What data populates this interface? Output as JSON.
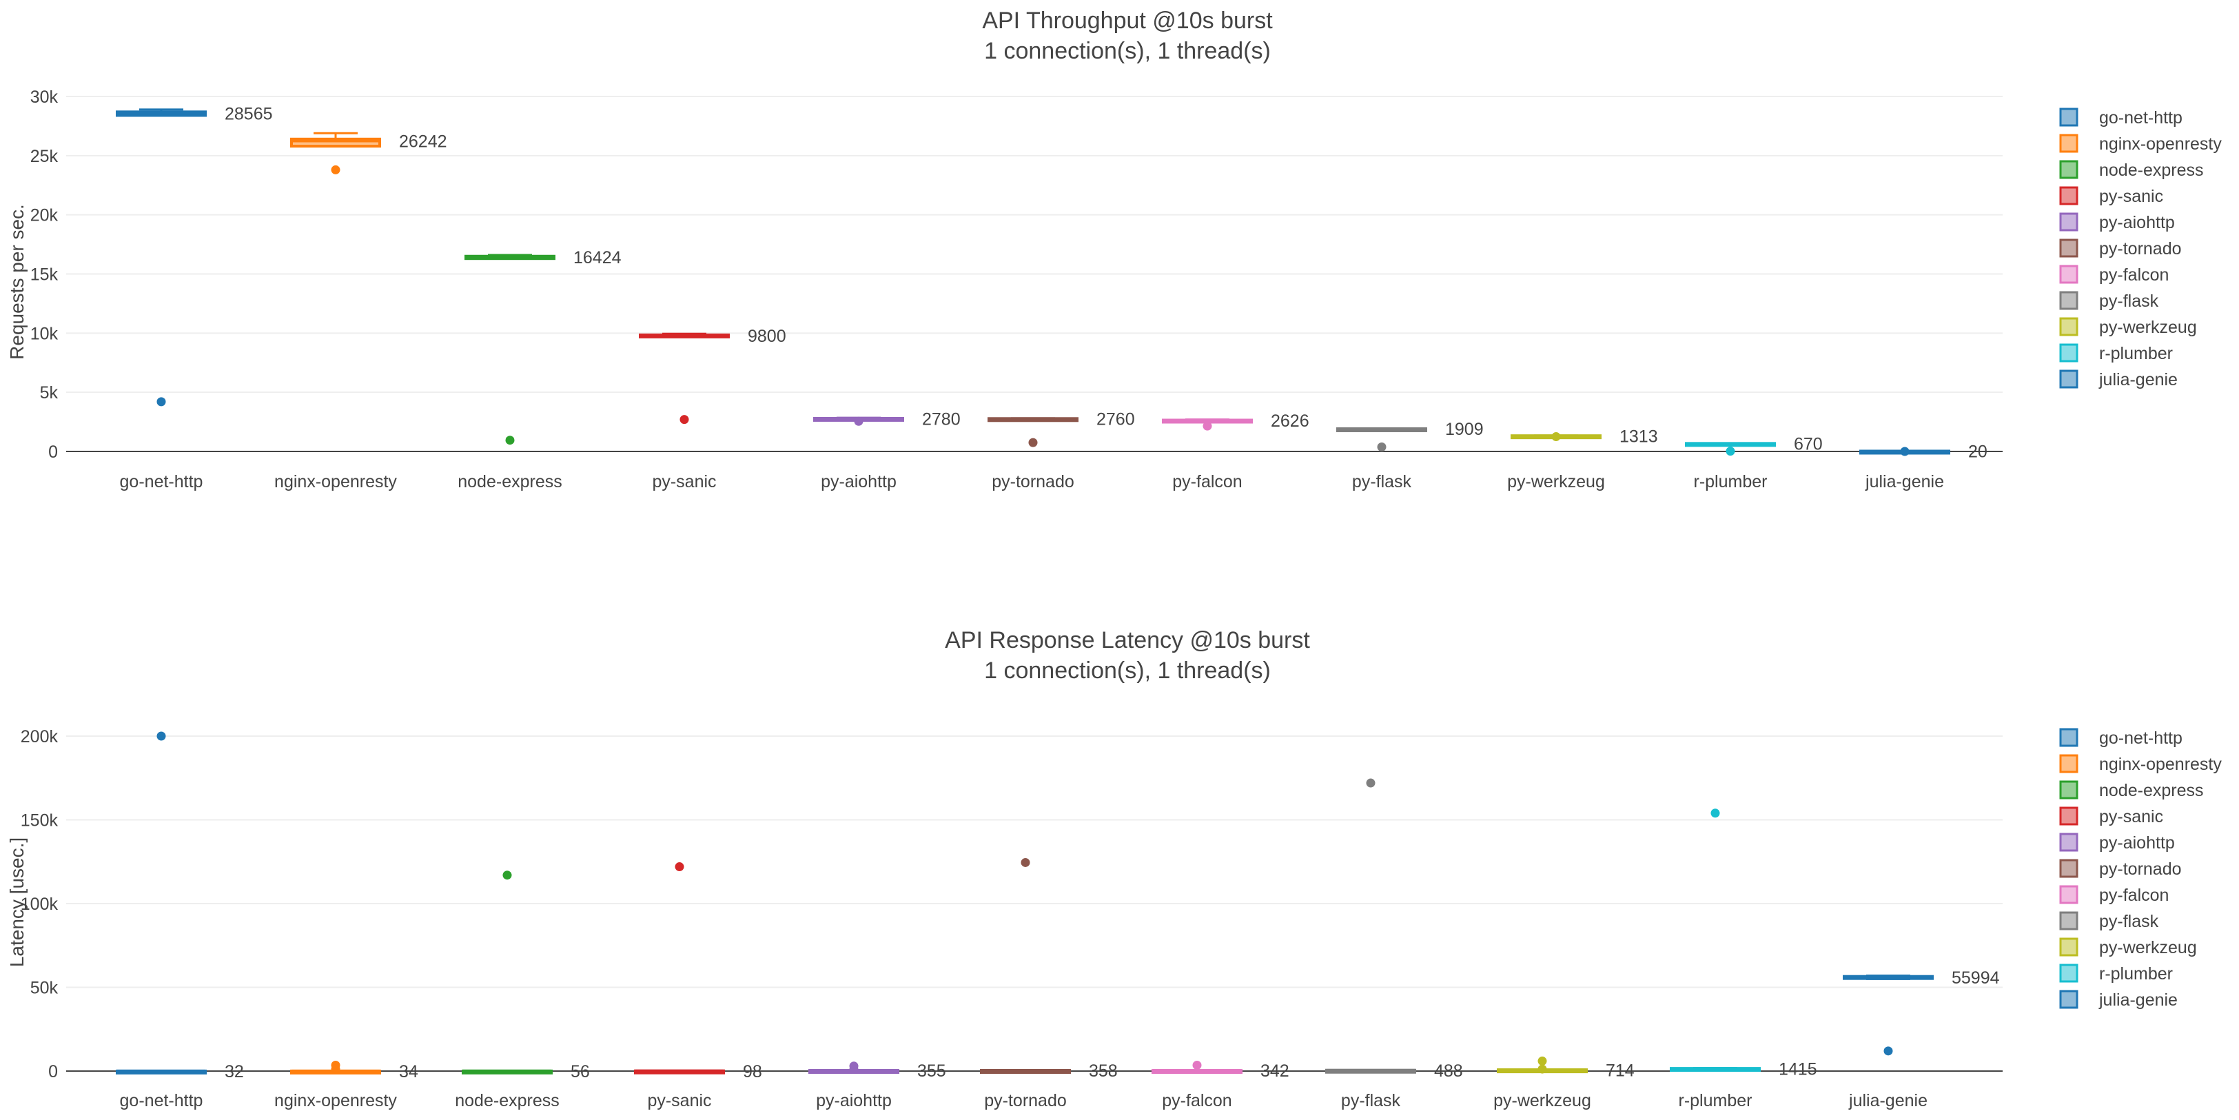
{
  "colors": {
    "go-net-http": "#1f77b4",
    "nginx-openresty": "#ff7f0e",
    "node-express": "#2ca02c",
    "py-sanic": "#d62728",
    "py-aiohttp": "#9467bd",
    "py-tornado": "#8c564b",
    "py-falcon": "#e377c2",
    "py-flask": "#7f7f7f",
    "py-werkzeug": "#bcbd22",
    "r-plumber": "#17becf",
    "julia-genie": "#1f77b4"
  },
  "chart_data": [
    {
      "type": "box",
      "title": "API Throughput @10s burst",
      "subtitle": "1 connection(s), 1 thread(s)",
      "xlabel": "",
      "ylabel": "Requests per sec.",
      "ylim": [
        0,
        30000
      ],
      "yticks": [
        0,
        5000,
        10000,
        15000,
        20000,
        25000,
        30000
      ],
      "ytick_labels": [
        "0",
        "5k",
        "10k",
        "15k",
        "20k",
        "25k",
        "30k"
      ],
      "grid": true,
      "legend": "right",
      "categories": [
        "go-net-http",
        "nginx-openresty",
        "node-express",
        "py-sanic",
        "py-aiohttp",
        "py-tornado",
        "py-falcon",
        "py-flask",
        "py-werkzeug",
        "r-plumber",
        "julia-genie"
      ],
      "series": [
        {
          "name": "go-net-http",
          "q1": 28400,
          "median": 28565,
          "q3": 28700,
          "whisker_low": 28400,
          "whisker_high": 28900,
          "outliers": [
            4200
          ],
          "label": "28565"
        },
        {
          "name": "nginx-openresty",
          "q1": 25800,
          "median": 26242,
          "q3": 26400,
          "whisker_low": 25800,
          "whisker_high": 26900,
          "outliers": [
            23800
          ],
          "label": "26242"
        },
        {
          "name": "node-express",
          "q1": 16300,
          "median": 16424,
          "q3": 16500,
          "whisker_low": 16300,
          "whisker_high": 16600,
          "outliers": [
            950
          ],
          "label": "16424"
        },
        {
          "name": "py-sanic",
          "q1": 9750,
          "median": 9800,
          "q3": 9850,
          "whisker_low": 9750,
          "whisker_high": 9950,
          "outliers": [
            2700
          ],
          "label": "9800"
        },
        {
          "name": "py-aiohttp",
          "q1": 2750,
          "median": 2780,
          "q3": 2800,
          "whisker_low": 2700,
          "whisker_high": 2850,
          "outliers": [
            2550
          ],
          "label": "2780"
        },
        {
          "name": "py-tornado",
          "q1": 2740,
          "median": 2760,
          "q3": 2780,
          "whisker_low": 2700,
          "whisker_high": 2800,
          "outliers": [
            750
          ],
          "label": "2760"
        },
        {
          "name": "py-falcon",
          "q1": 2600,
          "median": 2626,
          "q3": 2650,
          "whisker_low": 2550,
          "whisker_high": 2700,
          "outliers": [
            2150
          ],
          "label": "2626"
        },
        {
          "name": "py-flask",
          "q1": 1890,
          "median": 1909,
          "q3": 1920,
          "whisker_low": 1870,
          "whisker_high": 1940,
          "outliers": [
            380
          ],
          "label": "1909"
        },
        {
          "name": "py-werkzeug",
          "q1": 1300,
          "median": 1313,
          "q3": 1330,
          "whisker_low": 1280,
          "whisker_high": 1350,
          "outliers": [
            1250
          ],
          "label": "1313"
        },
        {
          "name": "r-plumber",
          "q1": 660,
          "median": 670,
          "q3": 680,
          "whisker_low": 640,
          "whisker_high": 700,
          "outliers": [
            20
          ],
          "label": "670"
        },
        {
          "name": "julia-genie",
          "q1": 10,
          "median": 20,
          "q3": 30,
          "whisker_low": 0,
          "whisker_high": 40,
          "outliers": [
            0
          ],
          "label": "20"
        }
      ]
    },
    {
      "type": "box",
      "title": "API Response Latency @10s burst",
      "subtitle": "1 connection(s), 1 thread(s)",
      "xlabel": "",
      "ylabel": "Latency [usec.]",
      "ylim": [
        0,
        200000
      ],
      "yticks": [
        0,
        50000,
        100000,
        150000,
        200000
      ],
      "ytick_labels": [
        "0",
        "50k",
        "100k",
        "150k",
        "200k"
      ],
      "grid": true,
      "legend": "right",
      "categories": [
        "go-net-http",
        "nginx-openresty",
        "node-express",
        "py-sanic",
        "py-aiohttp",
        "py-tornado",
        "py-falcon",
        "py-flask",
        "py-werkzeug",
        "r-plumber",
        "julia-genie"
      ],
      "series": [
        {
          "name": "go-net-http",
          "q1": 20,
          "median": 32,
          "q3": 45,
          "whisker_low": 10,
          "whisker_high": 60,
          "outliers": [
            200000
          ],
          "label": "32"
        },
        {
          "name": "nginx-openresty",
          "q1": 25,
          "median": 34,
          "q3": 45,
          "whisker_low": 15,
          "whisker_high": 60,
          "outliers": [
            3500,
            1200
          ],
          "label": "34"
        },
        {
          "name": "node-express",
          "q1": 45,
          "median": 56,
          "q3": 70,
          "whisker_low": 30,
          "whisker_high": 90,
          "outliers": [
            117000
          ],
          "label": "56"
        },
        {
          "name": "py-sanic",
          "q1": 80,
          "median": 98,
          "q3": 120,
          "whisker_low": 60,
          "whisker_high": 150,
          "outliers": [
            122000
          ],
          "label": "98"
        },
        {
          "name": "py-aiohttp",
          "q1": 300,
          "median": 355,
          "q3": 400,
          "whisker_low": 250,
          "whisker_high": 450,
          "outliers": [
            3000,
            1000
          ],
          "label": "355"
        },
        {
          "name": "py-tornado",
          "q1": 320,
          "median": 358,
          "q3": 400,
          "whisker_low": 280,
          "whisker_high": 450,
          "outliers": [
            124500
          ],
          "label": "358"
        },
        {
          "name": "py-falcon",
          "q1": 300,
          "median": 342,
          "q3": 380,
          "whisker_low": 250,
          "whisker_high": 420,
          "outliers": [
            3500
          ],
          "label": "342"
        },
        {
          "name": "py-flask",
          "q1": 450,
          "median": 488,
          "q3": 520,
          "whisker_low": 400,
          "whisker_high": 560,
          "outliers": [
            172000
          ],
          "label": "488"
        },
        {
          "name": "py-werkzeug",
          "q1": 650,
          "median": 714,
          "q3": 780,
          "whisker_low": 600,
          "whisker_high": 850,
          "outliers": [
            6000,
            1200
          ],
          "label": "714"
        },
        {
          "name": "r-plumber",
          "q1": 1200,
          "median": 1415,
          "q3": 1600,
          "whisker_low": 1000,
          "whisker_high": 1800,
          "outliers": [
            154000
          ],
          "label": "1415"
        },
        {
          "name": "julia-genie",
          "q1": 55500,
          "median": 55994,
          "q3": 56500,
          "whisker_low": 55000,
          "whisker_high": 57000,
          "outliers": [
            12000
          ],
          "label": "55994"
        }
      ]
    }
  ]
}
